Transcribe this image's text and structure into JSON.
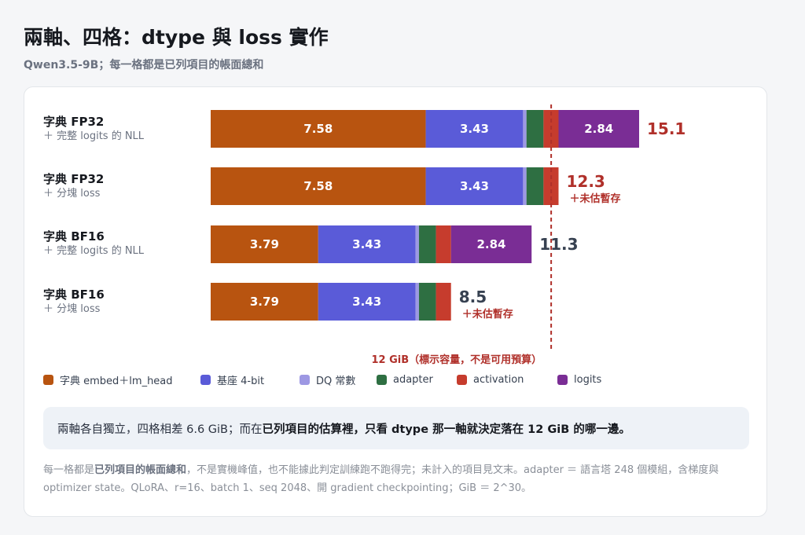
{
  "title": "兩軸、四格：dtype 與 loss 實作",
  "subtitle": "Qwen3.5-9B；每一格都是已列項目的帳面總和",
  "colors": {
    "embed": "#b85410",
    "base4bit": "#5a5bd8",
    "dq": "#9d98e3",
    "adapter": "#2e6f42",
    "activation": "#c63c2d",
    "logits": "#7a2d95",
    "total_red": "#b0302a",
    "total_gray": "#374151"
  },
  "chart_data": {
    "type": "bar",
    "orientation": "horizontal",
    "stacked": true,
    "unit": "GiB",
    "rows": [
      {
        "label": "字典 FP32",
        "sublabel": "＋ 完整 logits 的 NLL",
        "segments": [
          {
            "series": "embed",
            "value": 7.58,
            "label": "7.58"
          },
          {
            "series": "base4bit",
            "value": 3.43,
            "label": "3.43"
          },
          {
            "series": "dq",
            "value": 0.12,
            "label": ""
          },
          {
            "series": "adapter",
            "value": 0.6,
            "label": ""
          },
          {
            "series": "activation",
            "value": 0.53,
            "label": ""
          },
          {
            "series": "logits",
            "value": 2.84,
            "label": "2.84"
          }
        ],
        "total": "15.1",
        "total_color": "red",
        "note": ""
      },
      {
        "label": "字典 FP32",
        "sublabel": "＋ 分塊 loss",
        "segments": [
          {
            "series": "embed",
            "value": 7.58,
            "label": "7.58"
          },
          {
            "series": "base4bit",
            "value": 3.43,
            "label": "3.43"
          },
          {
            "series": "dq",
            "value": 0.12,
            "label": ""
          },
          {
            "series": "adapter",
            "value": 0.6,
            "label": ""
          },
          {
            "series": "activation",
            "value": 0.53,
            "label": ""
          }
        ],
        "total": "12.3",
        "total_color": "red",
        "note": "＋未估暫存"
      },
      {
        "label": "字典 BF16",
        "sublabel": "＋ 完整 logits 的 NLL",
        "segments": [
          {
            "series": "embed",
            "value": 3.79,
            "label": "3.79"
          },
          {
            "series": "base4bit",
            "value": 3.43,
            "label": "3.43"
          },
          {
            "series": "dq",
            "value": 0.12,
            "label": ""
          },
          {
            "series": "adapter",
            "value": 0.6,
            "label": ""
          },
          {
            "series": "activation",
            "value": 0.53,
            "label": ""
          },
          {
            "series": "logits",
            "value": 2.84,
            "label": "2.84"
          }
        ],
        "total": "11.3",
        "total_color": "gray",
        "note": ""
      },
      {
        "label": "字典 BF16",
        "sublabel": "＋ 分塊 loss",
        "segments": [
          {
            "series": "embed",
            "value": 3.79,
            "label": "3.79"
          },
          {
            "series": "base4bit",
            "value": 3.43,
            "label": "3.43"
          },
          {
            "series": "dq",
            "value": 0.12,
            "label": ""
          },
          {
            "series": "adapter",
            "value": 0.6,
            "label": ""
          },
          {
            "series": "activation",
            "value": 0.53,
            "label": ""
          }
        ],
        "total": "8.5",
        "total_color": "gray",
        "note": "＋未估暫存"
      }
    ],
    "xlim": [
      0,
      15.1
    ],
    "threshold": {
      "value": 12,
      "label": "12 GiB（標示容量，不是可用預算）"
    },
    "legend": [
      {
        "series": "embed",
        "label": "字典 embed＋lm_head"
      },
      {
        "series": "base4bit",
        "label": "基座 4-bit"
      },
      {
        "series": "dq",
        "label": "DQ 常數"
      },
      {
        "series": "adapter",
        "label": "adapter"
      },
      {
        "series": "activation",
        "label": "activation"
      },
      {
        "series": "logits",
        "label": "logits"
      }
    ]
  },
  "callout": {
    "part1": "兩軸各自獨立，四格相差 6.6 GiB；而在",
    "part2": "已列項目的估算裡，只看 dtype 那一軸就決定落在 12 GiB 的哪一邊。"
  },
  "footnote": {
    "part1": "每一格都是",
    "part2": "已列項目的帳面總和",
    "part3": "，不是實機峰值，也不能據此判定訓練跑不跑得完；未計入的項目見文末。adapter ＝ 語言塔 248 個模組，含梯度與 optimizer state。QLoRA、r=16、batch 1、seq 2048、開 gradient checkpointing；GiB ＝ 2^30。"
  }
}
